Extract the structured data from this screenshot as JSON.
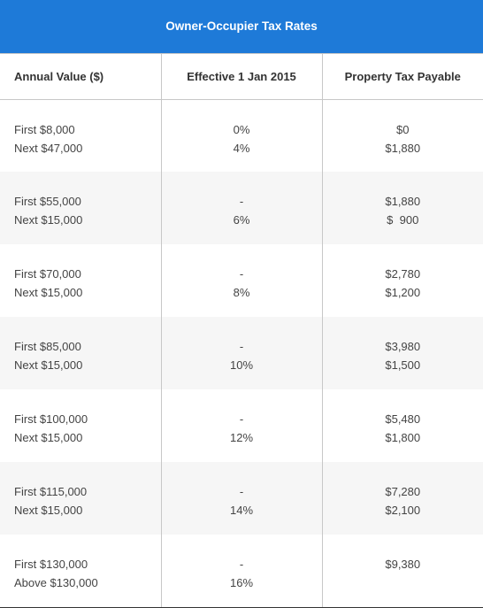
{
  "title": "Owner-Occupier Tax Rates",
  "headers": {
    "annual_value": "Annual Value ($)",
    "effective": "Effective 1 Jan 2015",
    "tax_payable": "Property Tax Payable"
  },
  "rows": [
    {
      "av1": "First $8,000",
      "av2": "Next $47,000",
      "rate1": "0%",
      "rate2": "4%",
      "tax1": "$0",
      "tax2": "$1,880"
    },
    {
      "av1": "First $55,000",
      "av2": "Next $15,000",
      "rate1": "-",
      "rate2": "6%",
      "tax1": "$1,880",
      "tax2": "$  900"
    },
    {
      "av1": "First $70,000",
      "av2": "Next $15,000",
      "rate1": "-",
      "rate2": "8%",
      "tax1": "$2,780",
      "tax2": "$1,200"
    },
    {
      "av1": "First $85,000",
      "av2": "Next $15,000",
      "rate1": "-",
      "rate2": "10%",
      "tax1": "$3,980",
      "tax2": "$1,500"
    },
    {
      "av1": "First $100,000",
      "av2": "Next $15,000",
      "rate1": "-",
      "rate2": "12%",
      "tax1": "$5,480",
      "tax2": "$1,800"
    },
    {
      "av1": "First $115,000",
      "av2": "Next $15,000",
      "rate1": "-",
      "rate2": "14%",
      "tax1": "$7,280",
      "tax2": "$2,100"
    },
    {
      "av1": "First $130,000",
      "av2": "Above $130,000",
      "rate1": "-",
      "rate2": "16%",
      "tax1": "$9,380",
      "tax2": ""
    }
  ]
}
